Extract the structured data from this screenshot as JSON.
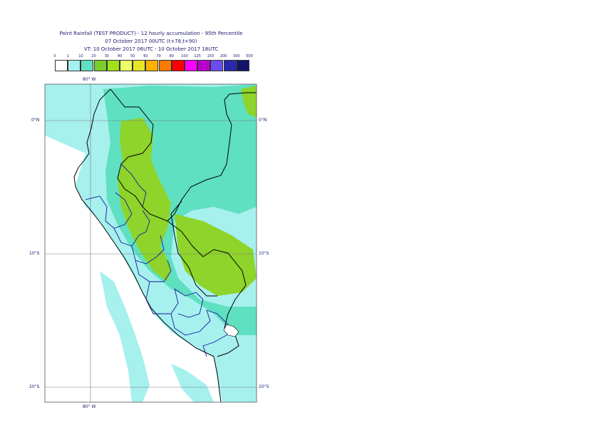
{
  "title": {
    "line1": "Point Rainfall (TEST PRODUCT) - 12 hourly accumulation - 95th Percentile",
    "line2": "07 October 2017 00UTC (t+78,t+90)",
    "line3": "VT: 10 October 2017 06UTC - 10 October 2017 18UTC"
  },
  "scale": {
    "labels": [
      "0",
      "1",
      "10",
      "20",
      "30",
      "40",
      "50",
      "60",
      "70",
      "80",
      "100",
      "125",
      "150",
      "200",
      "300",
      "500"
    ],
    "colors": [
      "#ffffff",
      "#a6f0ee",
      "#5fe0c0",
      "#7ccc2c",
      "#9fe01a",
      "#eaff66",
      "#e6e624",
      "#ffb000",
      "#ff7a00",
      "#ff0000",
      "#ff00ff",
      "#b800cc",
      "#6a4cf0",
      "#2828b0",
      "#14146a"
    ]
  },
  "map": {
    "lon_labels": [
      "80° W",
      "80° W"
    ],
    "lat_labels": [
      "0°N",
      "10°S",
      "20°S"
    ],
    "colors": {
      "ocean": "#ffffff",
      "light": "#a6f0ee",
      "mid": "#5fe0c0",
      "heavy": "#8ed42a",
      "border": "#000000",
      "region": "#1a1aa0",
      "grid": "#7a7a7a"
    }
  }
}
